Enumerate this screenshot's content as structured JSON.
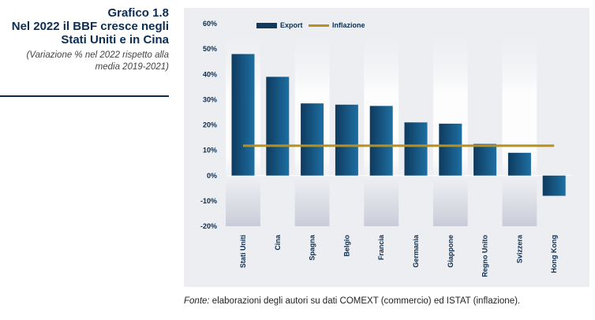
{
  "header": {
    "title_line1": "Grafico 1.8",
    "title_line2": "Nel 2022 il BBF cresce negli Stati Uniti e in Cina",
    "subtitle": "(Variazione % nel 2022 rispetto alla media 2019-2021)"
  },
  "footer": {
    "source_label": "Fonte:",
    "source_text": " elaborazioni degli autori su dati COMEXT (commercio) ed ISTAT (inflazione)."
  },
  "colors": {
    "bar_dark": "#0f3a5e",
    "bar_light": "#1d6fa3",
    "line": "#b8901f",
    "band": "#c9ccd8"
  },
  "chart_data": {
    "type": "bar",
    "categories": [
      "Stati Uniti",
      "Cina",
      "Spagna",
      "Belgio",
      "Francia",
      "Germania",
      "Giappone",
      "Regno Unito",
      "Svizzera",
      "Hong Kong"
    ],
    "series": [
      {
        "name": "Export",
        "type": "bar",
        "values": [
          48,
          39,
          28.5,
          28,
          27.5,
          21,
          20.5,
          12.5,
          9,
          -8
        ]
      },
      {
        "name": "Inflazione",
        "type": "line",
        "values": [
          11.8,
          11.8,
          11.8,
          11.8,
          11.8,
          11.8,
          11.8,
          11.8,
          11.8,
          11.8
        ]
      }
    ],
    "ylim": [
      -20,
      60
    ],
    "yticks": [
      "60%",
      "50%",
      "40%",
      "30%",
      "20%",
      "10%",
      "0%",
      "-10%",
      "-20%"
    ],
    "legend": [
      "Export",
      "Inflazione"
    ],
    "legend_position": "top-left"
  }
}
